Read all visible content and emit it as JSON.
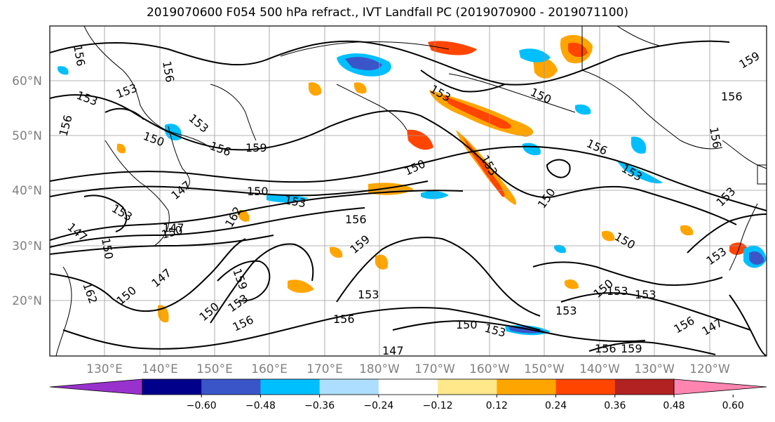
{
  "title": "2019070600 F054 500 hPa refract., IVT Landfall PC (2019070900 - 2019071100)",
  "latitude_labels": [
    "60°N",
    "50°N",
    "40°N",
    "30°N",
    "20°N"
  ],
  "longitude_labels": [
    "130°E",
    "140°E",
    "150°E",
    "160°E",
    "170°E",
    "180°W",
    "170°W",
    "160°W",
    "150°W",
    "140°W",
    "130°W",
    "120°W"
  ],
  "colorbar": {
    "ticks": [
      "−0.60",
      "−0.48",
      "−0.36",
      "−0.24",
      "−0.12",
      "0.12",
      "0.24",
      "0.36",
      "0.48",
      "0.60"
    ],
    "colors": [
      "#9932CC",
      "#00008B",
      "#3A55C8",
      "#00BFFF",
      "#ADDEFF",
      "#FFFFFF",
      "#FFE88A",
      "#FFA500",
      "#FF4500",
      "#B22222",
      "#FF85B0"
    ]
  },
  "contour_labels": [
    "156",
    "153",
    "153",
    "156",
    "156",
    "153",
    "150",
    "159",
    "156",
    "153",
    "150",
    "150",
    "153",
    "156",
    "159",
    "156",
    "150",
    "156",
    "153",
    "150",
    "153",
    "147",
    "153",
    "162",
    "150",
    "147",
    "150",
    "147",
    "150",
    "156",
    "153",
    "159",
    "159",
    "162",
    "147",
    "150",
    "153",
    "150",
    "153",
    "156",
    "153",
    "156",
    "150",
    "153",
    "147",
    "153",
    "150",
    "153",
    "153",
    "156",
    "159",
    "147",
    "156"
  ]
}
